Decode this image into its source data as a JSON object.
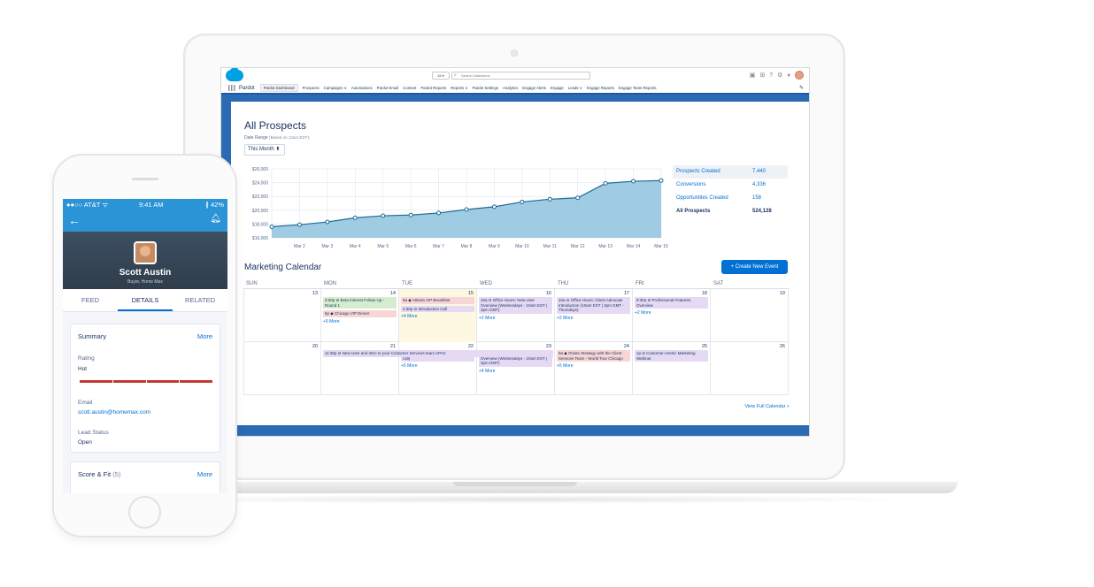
{
  "desktop": {
    "search_scope": "All ▾",
    "search_placeholder": "Search Salesforce",
    "app_name": "Pardot",
    "nav": [
      "Pardot Dashboard",
      "Prospects",
      "Campaigns ∨",
      "Automations",
      "Pardot Email",
      "Content",
      "Pardot Reports",
      "Reports ∨",
      "Pardot Settings",
      "Analytics",
      "Engage Alerts",
      "Engage",
      "Leads ∨",
      "Engage Reports",
      "Engage Team Reports"
    ],
    "dashboard": {
      "title": "All Prospects",
      "date_range_label": "Date Range",
      "date_range_note": "(Based on 12am EDT):",
      "date_select": "This Month ⬍",
      "stats": [
        {
          "label": "Prospects Created",
          "value": "7,440"
        },
        {
          "label": "Conversions",
          "value": "4,336"
        },
        {
          "label": "Opportunities Created",
          "value": "158"
        },
        {
          "label": "All Prospects",
          "value": "524,128"
        }
      ]
    },
    "calendar": {
      "title": "Marketing Calendar",
      "new_event_label": "+ Create New Event",
      "view_full": "View Full Calendar »",
      "days": [
        "SUN",
        "MON",
        "TUE",
        "WED",
        "THU",
        "FRI",
        "SAT"
      ],
      "week1": [
        {
          "num": "13",
          "events": [],
          "more": ""
        },
        {
          "num": "14",
          "events": [
            {
              "c": "g",
              "t": "3:00p ⊖ Beta Interest Follow Up - Round 1"
            },
            {
              "c": "r",
              "t": "6p ◆ Chicago VIP Dinner"
            }
          ],
          "more": "+9 More"
        },
        {
          "num": "15",
          "events": [
            {
              "c": "r",
              "t": "9a ◆ Atlanta VIP Breakfast"
            },
            {
              "c": "p",
              "t": "2:30p ⊖ Introduction Call"
            }
          ],
          "more": "+4 More"
        },
        {
          "num": "16",
          "events": [
            {
              "c": "p",
              "t": "10a ⊖ Office Hours: New User Overview (Wednesdays - 10am EST | 3pm GMT)"
            }
          ],
          "more": "+2 More"
        },
        {
          "num": "17",
          "events": [
            {
              "c": "p",
              "t": "10a ⊖ Office Hours: Client Advocate Introduction (10am EST | 3pm GMT - Thursdays)"
            }
          ],
          "more": "+2 More"
        },
        {
          "num": "18",
          "events": [
            {
              "c": "p",
              "t": "9:30a ⊖ Professional Features Overview"
            }
          ],
          "more": "+2 More"
        },
        {
          "num": "19",
          "events": [],
          "more": ""
        }
      ],
      "week2": [
        {
          "num": "20",
          "events": [],
          "more": ""
        },
        {
          "num": "21",
          "events": [
            {
              "c": "p",
              "t": "11:30p ⊖ New User and Intro to your Customer Services team APAC"
            }
          ],
          "more": ""
        },
        {
          "num": "22",
          "events": [
            {
              "c": "p",
              "t": "10:30a ⊖ Introduction Call (Tuesdays call)"
            }
          ],
          "more": "+5 More"
        },
        {
          "num": "23",
          "events": [
            {
              "c": "p",
              "t": "10a ⊖ Office Hours: New User Overview (Wednesdays - 10am EST | 3pm GMT)"
            }
          ],
          "more": "+4 More"
        },
        {
          "num": "24",
          "events": [
            {
              "c": "r",
              "t": "9a ◆ Onsite Strategy with the Client Services Team - World Tour Chicago"
            }
          ],
          "more": "+5 More"
        },
        {
          "num": "25",
          "events": [
            {
              "c": "p",
              "t": "1p ⊖ Customer-centric Marketing Webinar"
            }
          ],
          "more": ""
        },
        {
          "num": "26",
          "events": [],
          "more": ""
        }
      ]
    }
  },
  "chart_data": {
    "type": "area",
    "x": [
      "Mar 1",
      "Mar 2",
      "Mar 3",
      "Mar 4",
      "Mar 5",
      "Mar 6",
      "Mar 7",
      "Mar 8",
      "Mar 9",
      "Mar 10",
      "Mar 11",
      "Mar 12",
      "Mar 13",
      "Mar 14",
      "Mar 15"
    ],
    "x_tick_labels": [
      "Mar 2",
      "Mar 3",
      "Mar 4",
      "Mar 5",
      "Mar 6",
      "Mar 7",
      "Mar 8",
      "Mar 9",
      "Mar 10",
      "Mar 11",
      "Mar 12",
      "Mar 13",
      "Mar 14",
      "Mar 15"
    ],
    "values": [
      17600,
      17900,
      18300,
      18900,
      19200,
      19300,
      19600,
      20100,
      20500,
      21200,
      21600,
      21800,
      23900,
      24200,
      24300
    ],
    "y_ticks": [
      "$16,000",
      "$18,000",
      "$20,000",
      "$22,000",
      "$24,000",
      "$26,000"
    ],
    "ylim": [
      16000,
      26000
    ],
    "grid": true,
    "fill_color": "#8fc3de",
    "line_color": "#1f6b96"
  },
  "phone": {
    "carrier": "●●○○ AT&T ᯤ",
    "time": "9:41 AM",
    "battery": "∦ 42%",
    "name": "Scott Austin",
    "subtitle": "Buyer, Home Max",
    "tabs": [
      "FEED",
      "DETAILS",
      "RELATED"
    ],
    "summary_title": "Summary",
    "more": "More",
    "rating_label": "Rating",
    "rating_value": "Hot",
    "email_label": "Email",
    "email_value": "scott.austin@homemax.com",
    "lead_status_label": "Lead Status",
    "lead_status_value": "Open",
    "score_title": "Score & Fit",
    "score_count": "(5)"
  }
}
